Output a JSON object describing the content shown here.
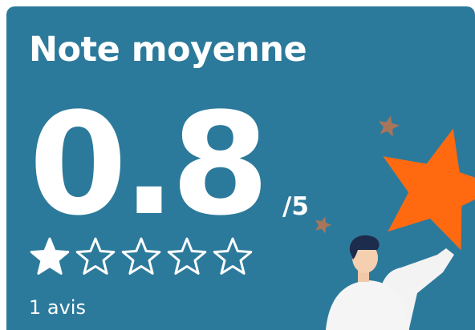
{
  "card": {
    "title": "Note moyenne",
    "score": "0.8",
    "scale": "/5",
    "reviews": "1 avis"
  }
}
